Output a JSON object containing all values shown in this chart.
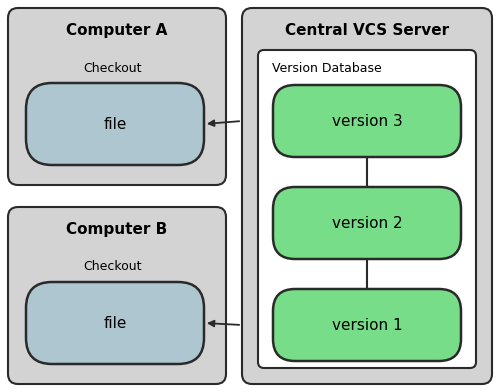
{
  "bg_color": "#d3d3d3",
  "white": "#ffffff",
  "blue_fill": "#aec6cf",
  "green_fill": "#77dd88",
  "dark_border": "#2a2a2a",
  "fig_bg": "#ffffff",
  "comp_a_label": "Computer A",
  "comp_b_label": "Computer B",
  "server_label": "Central VCS Server",
  "db_label": "Version Database",
  "checkout_label": "Checkout",
  "file_label": "file",
  "versions": [
    "version 3",
    "version 2",
    "version 1"
  ]
}
